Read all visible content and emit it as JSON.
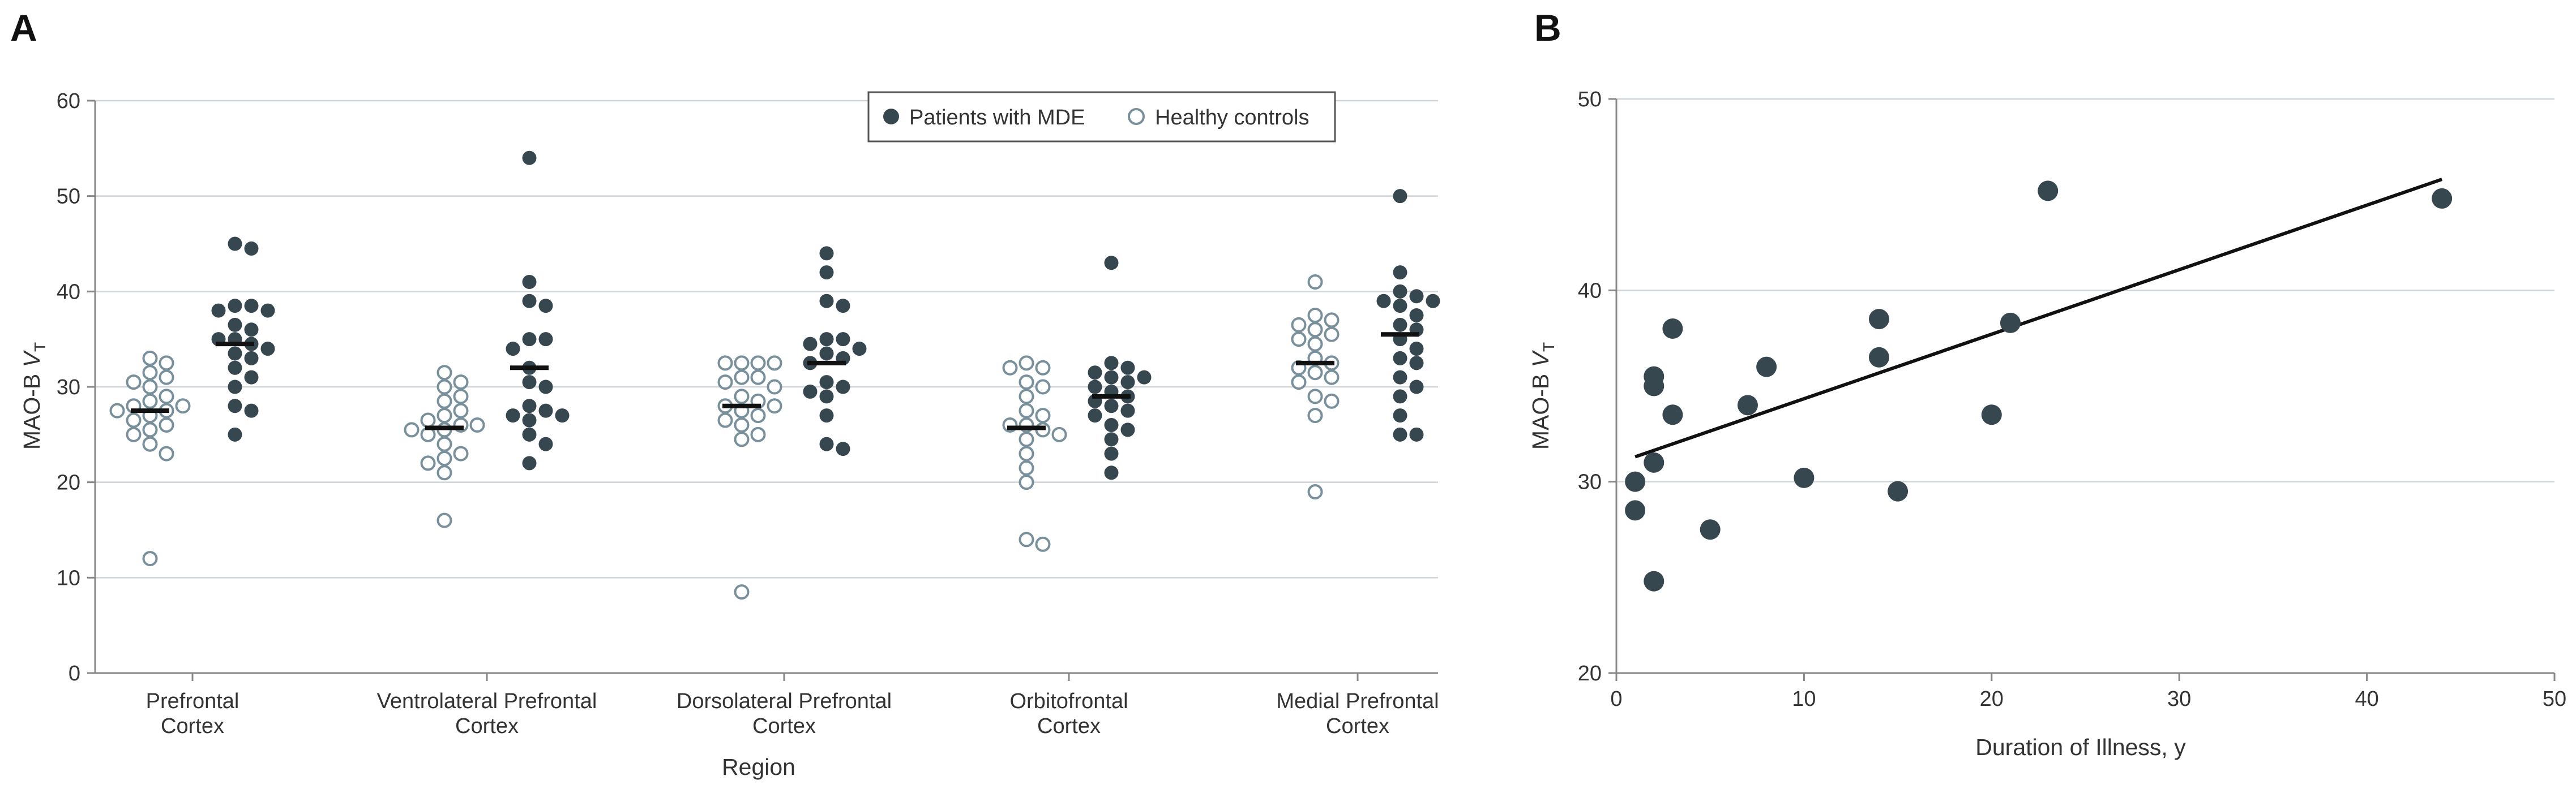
{
  "panels": {
    "a": "A",
    "b": "B"
  },
  "colors": {
    "patient": "#37474f",
    "control_fill": "#ffffff",
    "control_stroke": "#78909c",
    "grid": "#cfd4d8",
    "axis": "#888888",
    "mean": "#111111",
    "line": "#111111"
  },
  "chart_data": [
    {
      "type": "scatter",
      "panel": "A",
      "ylabel": "MAO-B",
      "ylabel_var": "V",
      "ylabel_sub": "T",
      "xlabel": "Region",
      "ylim": [
        0,
        60
      ],
      "yticks": [
        "0",
        "10",
        "20",
        "30",
        "40",
        "50",
        "60"
      ],
      "grid": true,
      "legend": {
        "position": "top-right",
        "patients": "Patients with MDE",
        "controls": "Healthy controls"
      },
      "categories": [
        {
          "line1": "Prefrontal",
          "line2": "Cortex",
          "controls": [
            33,
            32.5,
            31.5,
            31,
            30.5,
            30,
            29,
            28.5,
            28,
            28,
            27.5,
            27.5,
            27,
            26.5,
            26,
            25.5,
            25,
            24,
            23,
            12
          ],
          "control_mean": 27.5,
          "patients": [
            45,
            44.5,
            38.5,
            38.5,
            38,
            38,
            36.5,
            36,
            35,
            35,
            34.5,
            34,
            33.5,
            33,
            32,
            31,
            30,
            28,
            27.5,
            25
          ],
          "patient_mean": 34.5
        },
        {
          "line1": "Ventrolateral Prefrontal",
          "line2": "Cortex",
          "controls": [
            31.5,
            30.5,
            30,
            29,
            28.5,
            27.5,
            27,
            26.5,
            26,
            26,
            25.5,
            25.5,
            25,
            24,
            23,
            22.5,
            22,
            21,
            16
          ],
          "control_mean": 25.7,
          "patients": [
            54,
            41,
            39,
            38.5,
            35,
            35,
            34,
            32,
            30.5,
            30,
            28,
            27.5,
            27,
            27,
            26.5,
            25,
            24,
            22
          ],
          "patient_mean": 32
        },
        {
          "line1": "Dorsolateral Prefrontal",
          "line2": "Cortex",
          "controls": [
            32.5,
            32.5,
            32.5,
            32.5,
            31,
            31,
            30.5,
            30,
            29,
            28.5,
            28,
            28,
            27.5,
            27,
            26.5,
            26,
            25,
            24.5,
            8.5
          ],
          "control_mean": 28,
          "patients": [
            44,
            42,
            39,
            38.5,
            35,
            35,
            34.5,
            34,
            33.5,
            33,
            32.5,
            30.5,
            30,
            29.5,
            29,
            27,
            24,
            23.5
          ],
          "patient_mean": 32.5
        },
        {
          "line1": "Orbitofrontal",
          "line2": "Cortex",
          "controls": [
            32.5,
            32,
            32,
            30.5,
            30,
            29,
            27.5,
            27,
            26,
            26,
            25.5,
            25,
            24.5,
            23,
            21.5,
            20,
            14,
            13.5
          ],
          "control_mean": 25.7,
          "patients": [
            43,
            32.5,
            32,
            31.5,
            31,
            31,
            30.5,
            30,
            29.5,
            29,
            28.5,
            28,
            27.5,
            27,
            26,
            25.5,
            24.5,
            23,
            21
          ],
          "patient_mean": 29
        },
        {
          "line1": "Medial Prefrontal",
          "line2": "Cortex",
          "controls": [
            41,
            37.5,
            37,
            36.5,
            36,
            35.5,
            35,
            34.5,
            33,
            32.5,
            32,
            31.5,
            31,
            30.5,
            29,
            28.5,
            27,
            19
          ],
          "control_mean": 32.5,
          "patients": [
            50,
            42,
            40,
            39.5,
            39,
            39,
            38.5,
            37.5,
            36.5,
            36,
            35,
            34,
            33,
            32.5,
            31,
            30,
            29,
            27,
            25,
            25
          ],
          "patient_mean": 35.5
        }
      ]
    },
    {
      "type": "scatter",
      "panel": "B",
      "xlabel": "Duration of Illness, y",
      "ylabel": "MAO-B",
      "ylabel_var": "V",
      "ylabel_sub": "T",
      "xlim": [
        0,
        50
      ],
      "ylim": [
        20,
        50
      ],
      "xticks": [
        "0",
        "10",
        "20",
        "30",
        "40",
        "50"
      ],
      "yticks": [
        "20",
        "30",
        "40",
        "50"
      ],
      "grid": true,
      "points": [
        {
          "x": 1,
          "y": 30
        },
        {
          "x": 1,
          "y": 28.5
        },
        {
          "x": 2,
          "y": 35.5
        },
        {
          "x": 2,
          "y": 35
        },
        {
          "x": 2,
          "y": 31
        },
        {
          "x": 2,
          "y": 24.8
        },
        {
          "x": 3,
          "y": 38
        },
        {
          "x": 3,
          "y": 33.5
        },
        {
          "x": 5,
          "y": 27.5
        },
        {
          "x": 7,
          "y": 34
        },
        {
          "x": 8,
          "y": 36
        },
        {
          "x": 10,
          "y": 30.2
        },
        {
          "x": 14,
          "y": 38.5
        },
        {
          "x": 14,
          "y": 36.5
        },
        {
          "x": 15,
          "y": 29.5
        },
        {
          "x": 20,
          "y": 33.5
        },
        {
          "x": 21,
          "y": 38.3
        },
        {
          "x": 23,
          "y": 45.2
        },
        {
          "x": 44,
          "y": 44.8
        }
      ],
      "fit_line": {
        "x": [
          1,
          44
        ],
        "y": [
          31.3,
          45.8
        ]
      }
    }
  ]
}
